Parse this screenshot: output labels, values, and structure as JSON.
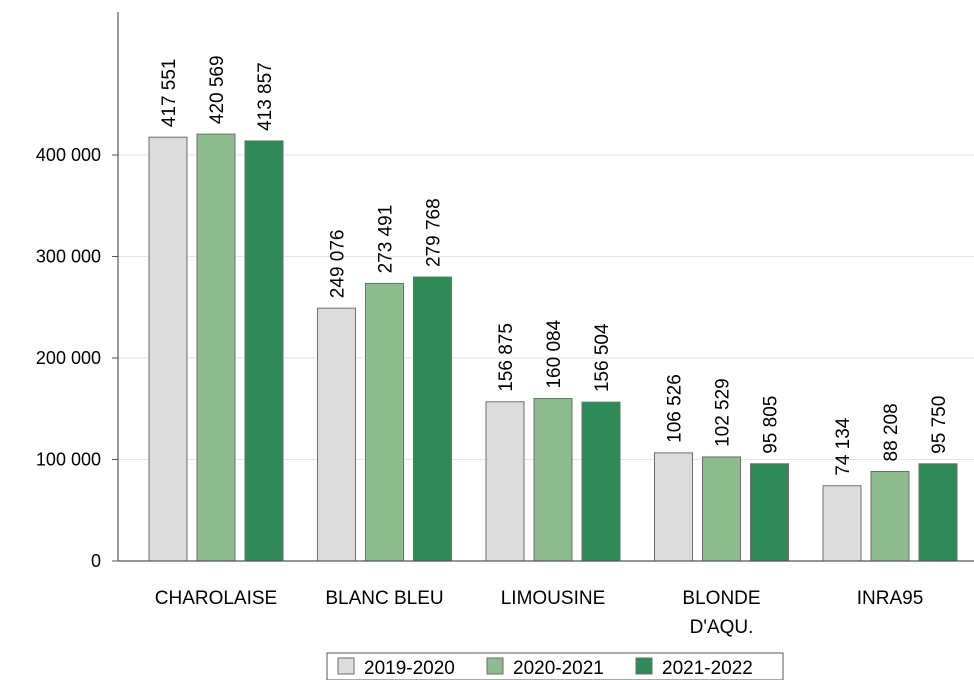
{
  "chart_data": {
    "type": "bar",
    "categories": [
      "CHAROLAISE",
      "BLANC BLEU",
      "LIMOUSINE",
      "BLONDE D'AQU.",
      "INRA95"
    ],
    "category_lines": [
      [
        "CHAROLAISE"
      ],
      [
        "BLANC BLEU"
      ],
      [
        "LIMOUSINE"
      ],
      [
        "BLONDE",
        "D'AQU."
      ],
      [
        "INRA95"
      ]
    ],
    "series": [
      {
        "name": "2019-2020",
        "color": "#dcdcdc",
        "values": [
          417551,
          249076,
          156875,
          106526,
          74134
        ],
        "labels": [
          "417 551",
          "249 076",
          "156 875",
          "106 526",
          "74 134"
        ]
      },
      {
        "name": "2020-2021",
        "color": "#8fbc8f",
        "values": [
          420569,
          273491,
          160084,
          102529,
          88208
        ],
        "labels": [
          "420 569",
          "273 491",
          "160 084",
          "102 529",
          "88 208"
        ]
      },
      {
        "name": "2021-2022",
        "color": "#2e8b57",
        "values": [
          413857,
          279768,
          156504,
          95805,
          95750
        ],
        "labels": [
          "413 857",
          "279 768",
          "156 504",
          "95 805",
          "95 750"
        ]
      }
    ],
    "ylim": [
      0,
      400000
    ],
    "yticks": [
      0,
      100000,
      200000,
      300000,
      400000
    ],
    "ytick_labels": [
      "0",
      "100 000",
      "200 000",
      "300 000",
      "400 000"
    ],
    "grid": true,
    "legend_position": "bottom-center"
  }
}
